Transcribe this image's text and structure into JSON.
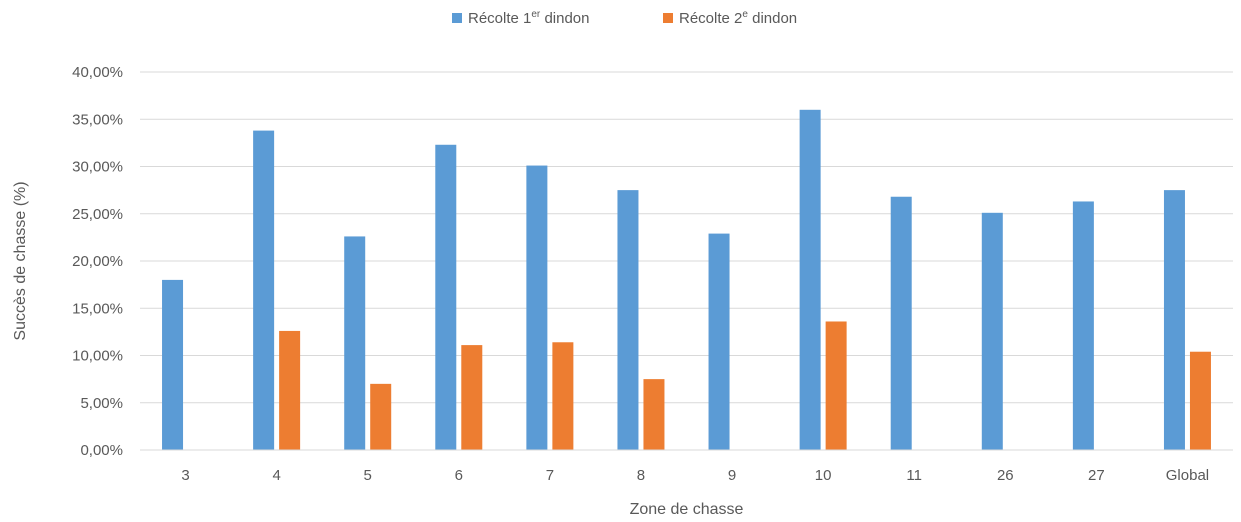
{
  "chart_data": {
    "type": "bar",
    "categories": [
      "3",
      "4",
      "5",
      "6",
      "7",
      "8",
      "9",
      "10",
      "11",
      "26",
      "27",
      "Global"
    ],
    "series": [
      {
        "name": "Récolte 1er dindon",
        "name_main": "Récolte 1",
        "name_sup": "er",
        "name_tail": " dindon",
        "color": "#5B9BD5",
        "values": [
          18.0,
          33.8,
          22.6,
          32.3,
          30.1,
          27.5,
          22.9,
          36.0,
          26.8,
          25.1,
          26.3,
          27.5
        ]
      },
      {
        "name": "Récolte 2e dindon",
        "name_main": "Récolte 2",
        "name_sup": "e",
        "name_tail": " dindon",
        "color": "#ED7D31",
        "values": [
          null,
          12.6,
          7.0,
          11.1,
          11.4,
          7.5,
          null,
          13.6,
          null,
          null,
          null,
          10.4
        ]
      }
    ],
    "xlabel": "Zone de chasse",
    "ylabel": "Succès de chasse (%)",
    "ylim": [
      0,
      40
    ],
    "yticks": [
      "0,00%",
      "5,00%",
      "10,00%",
      "15,00%",
      "20,00%",
      "25,00%",
      "30,00%",
      "35,00%",
      "40,00%"
    ],
    "grid": true,
    "legend_position": "top"
  }
}
